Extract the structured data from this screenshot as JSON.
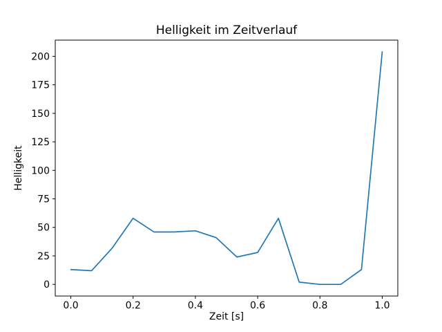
{
  "chart_data": {
    "type": "line",
    "title": "Helligkeit im Zeitverlauf",
    "xlabel": "Zeit [s]",
    "ylabel": "Helligkeit",
    "x": [
      0.0,
      0.0667,
      0.1333,
      0.2,
      0.2667,
      0.3333,
      0.4,
      0.4667,
      0.5333,
      0.6,
      0.6667,
      0.7333,
      0.8,
      0.8667,
      0.9333,
      1.0
    ],
    "y": [
      13,
      12,
      32,
      58,
      46,
      46,
      47,
      41,
      24,
      28,
      58,
      2,
      0,
      0,
      13,
      204
    ],
    "xlim": [
      -0.05,
      1.05
    ],
    "ylim": [
      -10.2,
      214.2
    ],
    "xticks": [
      0.0,
      0.2,
      0.4,
      0.6,
      0.8,
      1.0
    ],
    "xtick_labels": [
      "0.0",
      "0.2",
      "0.4",
      "0.6",
      "0.8",
      "1.0"
    ],
    "yticks": [
      0,
      25,
      50,
      75,
      100,
      125,
      150,
      175,
      200
    ],
    "ytick_labels": [
      "0",
      "25",
      "50",
      "75",
      "100",
      "125",
      "150",
      "175",
      "200"
    ],
    "line_color": "#1f77b4",
    "axes_color": "#000000",
    "background_color": "#ffffff",
    "grid": false,
    "legend_position": "none"
  }
}
